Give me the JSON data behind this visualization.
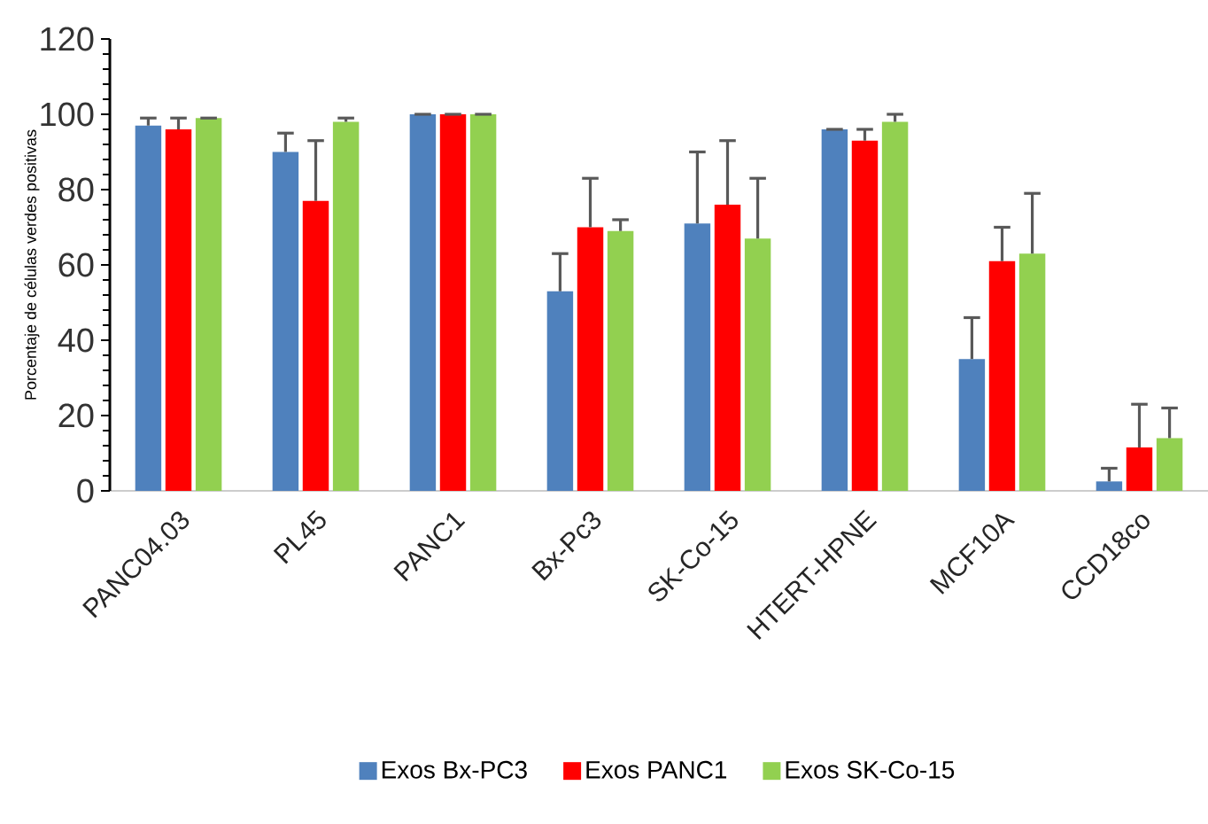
{
  "chart_data": {
    "type": "bar",
    "ylabel": "Porcentaje de células verdes positivas",
    "categories": [
      "PANC04.03",
      "PL45",
      "PANC1",
      "Bx-Pc3",
      "SK-Co-15",
      "HTERT-HPNE",
      "MCF10A",
      "CCD18co"
    ],
    "series": [
      {
        "name": "Exos Bx-PC3",
        "color": "#4f81bd",
        "values": [
          97,
          90,
          100,
          53,
          71,
          96,
          35,
          2.5
        ],
        "errors": [
          [
            97,
            99
          ],
          [
            90,
            95
          ],
          [
            100,
            100
          ],
          [
            53,
            63
          ],
          [
            71,
            90
          ],
          [
            96,
            96
          ],
          [
            35,
            46
          ],
          [
            2.5,
            6
          ]
        ]
      },
      {
        "name": "Exos PANC1",
        "color": "#ff0000",
        "values": [
          96,
          77,
          100,
          70,
          76,
          93,
          61,
          11.5
        ],
        "errors": [
          [
            96,
            99
          ],
          [
            77,
            93
          ],
          [
            100,
            100
          ],
          [
            70,
            83
          ],
          [
            76,
            93
          ],
          [
            93,
            96
          ],
          [
            61,
            70
          ],
          [
            11.5,
            23
          ]
        ]
      },
      {
        "name": "Exos SK-Co-15",
        "color": "#92d050",
        "values": [
          99,
          98,
          100,
          69,
          67,
          98,
          63,
          14
        ],
        "errors": [
          [
            99,
            99
          ],
          [
            98,
            99
          ],
          [
            100,
            100
          ],
          [
            69,
            72
          ],
          [
            67,
            83
          ],
          [
            98,
            100
          ],
          [
            63,
            79
          ],
          [
            14,
            22
          ]
        ]
      }
    ],
    "ylim": [
      0,
      120
    ],
    "yticks": [
      0,
      20,
      40,
      60,
      80,
      100,
      120
    ],
    "grid": false,
    "legend": "bottom"
  }
}
